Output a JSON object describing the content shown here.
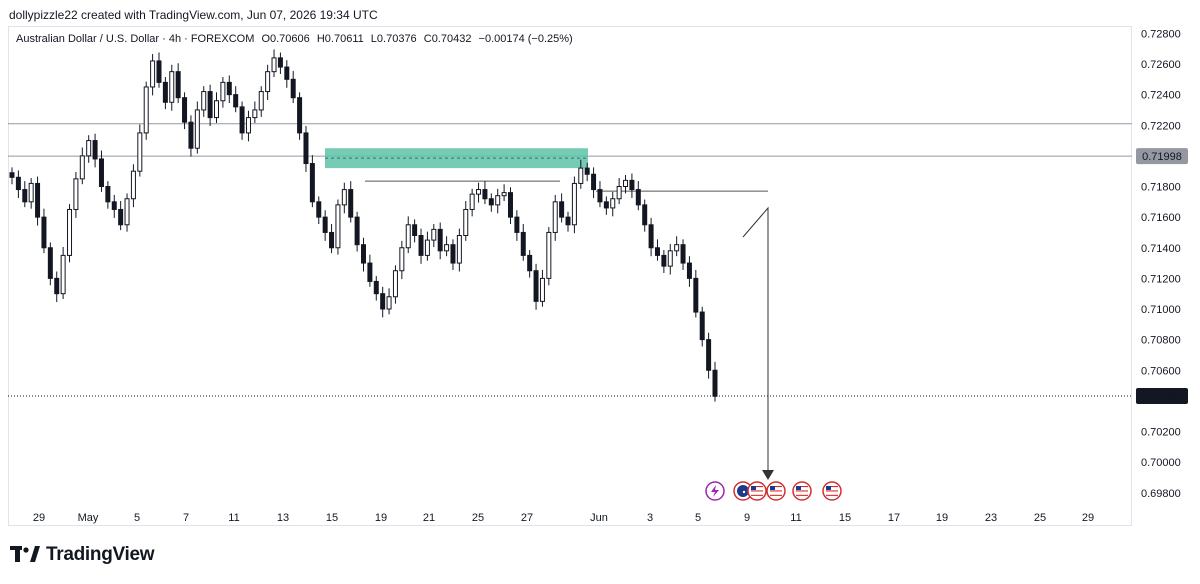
{
  "header": {
    "attribution": "dollypizzle22 created with TradingView.com, Jun 07, 2026 19:34 UTC"
  },
  "legend": {
    "symbol": "Australian Dollar / U.S. Dollar · 4h · FOREXCOM",
    "open": "O0.70606",
    "high": "H0.70611",
    "low": "L0.70376",
    "close": "C0.70432",
    "change": "−0.00174 (−0.25%)"
  },
  "footer": {
    "brand": "TradingView"
  },
  "colors": {
    "up": "#131722",
    "down": "#131722",
    "zone": "#5ec2a8",
    "line": "#787b86"
  },
  "chart_data": {
    "type": "candlestick",
    "title": "Australian Dollar / U.S. Dollar · 4h · FOREXCOM",
    "ylim": [
      0.6972,
      0.7292
    ],
    "y_ticks": [
      "0.72800",
      "0.72600",
      "0.72400",
      "0.72200",
      "0.71998",
      "0.71800",
      "0.71600",
      "0.71400",
      "0.71200",
      "0.71000",
      "0.70800",
      "0.70600",
      "0.70432",
      "0.70200",
      "0.70000",
      "0.69800"
    ],
    "x_ticks": [
      "29",
      "May",
      "5",
      "7",
      "11",
      "13",
      "15",
      "19",
      "21",
      "25",
      "27",
      "Jun",
      "3",
      "5",
      "9",
      "11",
      "15",
      "17",
      "19",
      "23",
      "25",
      "29"
    ],
    "last_price": 0.70432,
    "marked_price": 0.71998,
    "horizontal_lines": [
      0.7221,
      0.71998
    ],
    "supply_zone": {
      "low": 0.7192,
      "high": 0.7205
    },
    "resistance_segment": 0.71835,
    "short_level": 0.7177,
    "candles_path": [
      0.7186,
      0.7178,
      0.717,
      0.7182,
      0.716,
      0.714,
      0.712,
      0.711,
      0.7135,
      0.7165,
      0.7185,
      0.72,
      0.721,
      0.7198,
      0.718,
      0.717,
      0.7165,
      0.7155,
      0.7172,
      0.719,
      0.7215,
      0.7245,
      0.7262,
      0.7248,
      0.7235,
      0.7255,
      0.7238,
      0.7222,
      0.7205,
      0.723,
      0.7242,
      0.7225,
      0.7236,
      0.7248,
      0.724,
      0.7232,
      0.7215,
      0.7225,
      0.723,
      0.7242,
      0.7255,
      0.7264,
      0.7258,
      0.725,
      0.7238,
      0.7215,
      0.7195,
      0.717,
      0.716,
      0.715,
      0.714,
      0.7168,
      0.7178,
      0.716,
      0.7142,
      0.713,
      0.7118,
      0.711,
      0.71,
      0.7108,
      0.7125,
      0.714,
      0.7155,
      0.7148,
      0.7135,
      0.7145,
      0.7152,
      0.7138,
      0.7142,
      0.713,
      0.7148,
      0.7165,
      0.7175,
      0.7178,
      0.7172,
      0.7168,
      0.7174,
      0.7176,
      0.716,
      0.715,
      0.7135,
      0.7125,
      0.7105,
      0.712,
      0.715,
      0.717,
      0.716,
      0.7155,
      0.7182,
      0.7192,
      0.7188,
      0.7178,
      0.717,
      0.7166,
      0.7172,
      0.718,
      0.7184,
      0.7178,
      0.7168,
      0.7155,
      0.714,
      0.7135,
      0.7128,
      0.7138,
      0.7142,
      0.713,
      0.712,
      0.7098,
      0.708,
      0.706,
      0.7043
    ],
    "events": [
      "lightning",
      "AU",
      "US",
      "US",
      "US",
      "US"
    ]
  }
}
